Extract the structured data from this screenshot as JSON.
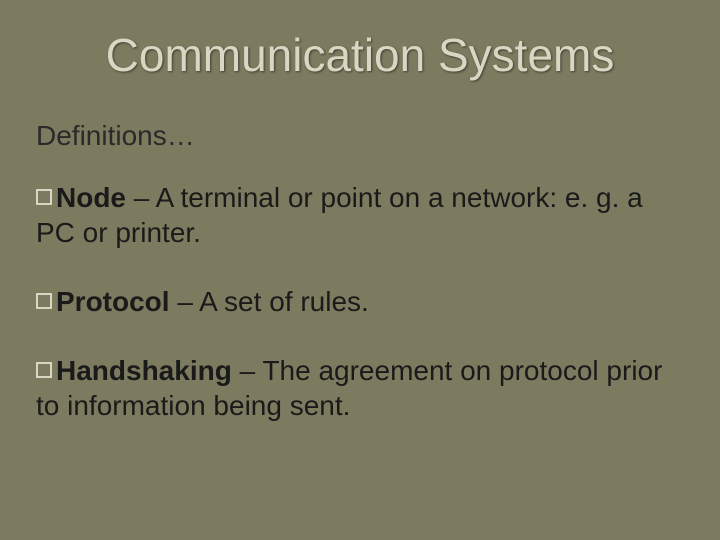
{
  "slide": {
    "background_color": "#7c7b5f",
    "title_color": "#d9d7c3",
    "text_color": "#1a1a1a",
    "bullet_border_color": "#d9d7c3",
    "title_fontsize": 46,
    "subtitle_fontsize": 28,
    "body_fontsize": 28
  },
  "title": "Communication Systems",
  "subtitle": "Definitions…",
  "items": [
    {
      "term": "Node",
      "definition": " – A terminal or point on a network: e. g. a PC or printer."
    },
    {
      "term": "Protocol",
      "definition": " – A set of rules."
    },
    {
      "term": "Handshaking",
      "definition": " – The agreement on protocol prior to information being sent."
    }
  ]
}
